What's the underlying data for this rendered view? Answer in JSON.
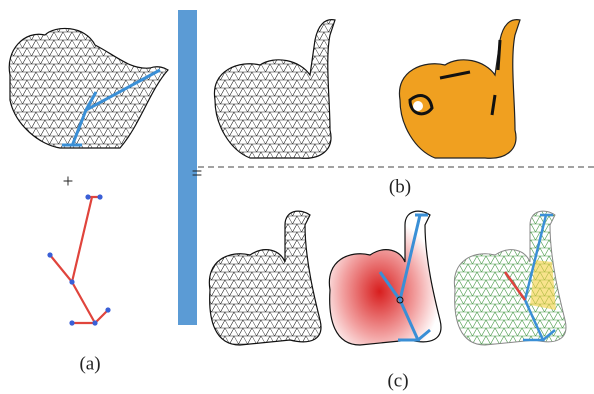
{
  "operators": {
    "plus": "+",
    "equals": "="
  },
  "panels": [
    {
      "label": "(a)"
    },
    {
      "label": "(b)"
    },
    {
      "label": "(c)"
    }
  ]
}
